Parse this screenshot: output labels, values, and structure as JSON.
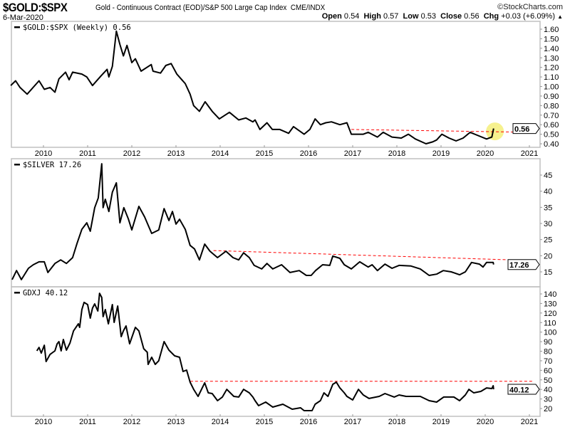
{
  "header": {
    "symbol": "$GOLD:$SPX",
    "description": "Gold - Continuous Contract (EOD)/S&P 500 Large Cap Index",
    "exchange": "CME/INDX",
    "brand": "©StockCharts.com",
    "date": "6-Mar-2020",
    "open_label": "Open",
    "open": "0.54",
    "high_label": "High",
    "high": "0.57",
    "low_label": "Low",
    "low": "0.53",
    "close_label": "Close",
    "close": "0.56",
    "chg_label": "Chg",
    "chg": "+0.03 (+6.09%)",
    "up_arrow_icon": "triangle-up"
  },
  "colors": {
    "line": "#000000",
    "trend": "#ff0000",
    "highlight": "#f5ef7a",
    "grid": "#c0c0c0"
  },
  "chart_data": [
    {
      "type": "line",
      "legend": "$GOLD:$SPX (Weekly) 0.56",
      "last_value_label": "0.56",
      "ylim": [
        0.35,
        1.68
      ],
      "yticks": [
        "1.60",
        "1.50",
        "1.40",
        "1.30",
        "1.20",
        "1.10",
        "1.00",
        "0.90",
        "0.80",
        "0.70",
        "0.60",
        "0.50",
        "0.40"
      ],
      "xticks": [
        "2010",
        "2011",
        "2012",
        "2013",
        "2014",
        "2015",
        "2016",
        "2017",
        "2018",
        "2019",
        "2020",
        "2021"
      ],
      "trendline": [
        [
          2016.97,
          0.55
        ],
        [
          2021.07,
          0.52
        ]
      ],
      "highlight_circle": [
        2020.22,
        0.53
      ],
      "points": [
        [
          2009.26,
          1.01
        ],
        [
          2009.37,
          1.06
        ],
        [
          2009.47,
          0.99
        ],
        [
          2009.63,
          0.92
        ],
        [
          2009.9,
          1.06
        ],
        [
          2010.02,
          0.97
        ],
        [
          2010.15,
          0.99
        ],
        [
          2010.26,
          0.94
        ],
        [
          2010.35,
          1.08
        ],
        [
          2010.5,
          1.15
        ],
        [
          2010.58,
          1.07
        ],
        [
          2010.66,
          1.15
        ],
        [
          2010.87,
          1.13
        ],
        [
          2010.98,
          1.1
        ],
        [
          2011.11,
          1.01
        ],
        [
          2011.3,
          1.11
        ],
        [
          2011.44,
          1.18
        ],
        [
          2011.48,
          1.1
        ],
        [
          2011.56,
          1.21
        ],
        [
          2011.65,
          1.58
        ],
        [
          2011.73,
          1.44
        ],
        [
          2011.81,
          1.32
        ],
        [
          2011.89,
          1.43
        ],
        [
          2012.0,
          1.25
        ],
        [
          2012.08,
          1.29
        ],
        [
          2012.21,
          1.16
        ],
        [
          2012.44,
          1.23
        ],
        [
          2012.48,
          1.16
        ],
        [
          2012.65,
          1.14
        ],
        [
          2012.77,
          1.22
        ],
        [
          2012.89,
          1.24
        ],
        [
          2013.02,
          1.13
        ],
        [
          2013.21,
          1.03
        ],
        [
          2013.32,
          0.92
        ],
        [
          2013.4,
          0.8
        ],
        [
          2013.53,
          0.74
        ],
        [
          2013.66,
          0.84
        ],
        [
          2013.82,
          0.74
        ],
        [
          2013.98,
          0.66
        ],
        [
          2014.21,
          0.73
        ],
        [
          2014.42,
          0.65
        ],
        [
          2014.58,
          0.67
        ],
        [
          2014.74,
          0.63
        ],
        [
          2014.79,
          0.65
        ],
        [
          2014.9,
          0.55
        ],
        [
          2015.06,
          0.62
        ],
        [
          2015.18,
          0.55
        ],
        [
          2015.35,
          0.55
        ],
        [
          2015.55,
          0.51
        ],
        [
          2015.66,
          0.58
        ],
        [
          2015.9,
          0.5
        ],
        [
          2016.03,
          0.55
        ],
        [
          2016.15,
          0.66
        ],
        [
          2016.27,
          0.6
        ],
        [
          2016.39,
          0.62
        ],
        [
          2016.52,
          0.63
        ],
        [
          2016.71,
          0.6
        ],
        [
          2016.87,
          0.62
        ],
        [
          2016.97,
          0.5
        ],
        [
          2017.24,
          0.5
        ],
        [
          2017.35,
          0.52
        ],
        [
          2017.56,
          0.47
        ],
        [
          2017.69,
          0.52
        ],
        [
          2017.89,
          0.47
        ],
        [
          2018.1,
          0.46
        ],
        [
          2018.26,
          0.5
        ],
        [
          2018.42,
          0.45
        ],
        [
          2018.66,
          0.4
        ],
        [
          2018.81,
          0.42
        ],
        [
          2018.9,
          0.44
        ],
        [
          2019.02,
          0.5
        ],
        [
          2019.18,
          0.46
        ],
        [
          2019.34,
          0.43
        ],
        [
          2019.5,
          0.46
        ],
        [
          2019.66,
          0.52
        ],
        [
          2019.82,
          0.49
        ],
        [
          2020.03,
          0.45
        ],
        [
          2020.15,
          0.47
        ],
        [
          2020.19,
          0.56
        ]
      ]
    },
    {
      "type": "line",
      "legend": "$SILVER 17.26",
      "last_value_label": "17.26",
      "ylim": [
        11,
        49
      ],
      "yticks": [
        "45",
        "40",
        "35",
        "30",
        "25",
        "20",
        "15"
      ],
      "trendline": [
        [
          2013.85,
          21.6
        ],
        [
          2021.07,
          18.5
        ]
      ],
      "points": [
        [
          2009.29,
          12.6
        ],
        [
          2009.39,
          15.4
        ],
        [
          2009.5,
          12.6
        ],
        [
          2009.66,
          16.1
        ],
        [
          2009.77,
          17.2
        ],
        [
          2009.9,
          18.1
        ],
        [
          2010.02,
          18.1
        ],
        [
          2010.1,
          14.8
        ],
        [
          2010.26,
          17.6
        ],
        [
          2010.39,
          18.7
        ],
        [
          2010.52,
          17.6
        ],
        [
          2010.66,
          19.4
        ],
        [
          2010.76,
          23.8
        ],
        [
          2010.87,
          28.2
        ],
        [
          2010.98,
          30.2
        ],
        [
          2011.06,
          27.6
        ],
        [
          2011.16,
          34.9
        ],
        [
          2011.24,
          37.9
        ],
        [
          2011.32,
          48.5
        ],
        [
          2011.35,
          34.9
        ],
        [
          2011.4,
          37.5
        ],
        [
          2011.48,
          33.7
        ],
        [
          2011.56,
          39.7
        ],
        [
          2011.65,
          42.6
        ],
        [
          2011.73,
          30.2
        ],
        [
          2011.82,
          34.9
        ],
        [
          2011.92,
          31.5
        ],
        [
          2012.0,
          28.0
        ],
        [
          2012.16,
          35.3
        ],
        [
          2012.29,
          32.0
        ],
        [
          2012.45,
          26.9
        ],
        [
          2012.61,
          28.0
        ],
        [
          2012.73,
          34.6
        ],
        [
          2012.84,
          30.9
        ],
        [
          2012.92,
          33.7
        ],
        [
          2013.0,
          29.8
        ],
        [
          2013.08,
          31.3
        ],
        [
          2013.21,
          28.2
        ],
        [
          2013.32,
          23.2
        ],
        [
          2013.42,
          22.1
        ],
        [
          2013.53,
          18.7
        ],
        [
          2013.65,
          23.6
        ],
        [
          2013.77,
          21.4
        ],
        [
          2013.94,
          19.4
        ],
        [
          2014.13,
          21.4
        ],
        [
          2014.29,
          19.4
        ],
        [
          2014.42,
          18.7
        ],
        [
          2014.53,
          20.9
        ],
        [
          2014.66,
          19.4
        ],
        [
          2014.77,
          17.0
        ],
        [
          2014.94,
          15.9
        ],
        [
          2015.06,
          17.6
        ],
        [
          2015.19,
          15.9
        ],
        [
          2015.39,
          17.2
        ],
        [
          2015.58,
          14.8
        ],
        [
          2015.79,
          15.4
        ],
        [
          2015.95,
          13.9
        ],
        [
          2016.06,
          13.9
        ],
        [
          2016.16,
          15.4
        ],
        [
          2016.32,
          17.2
        ],
        [
          2016.48,
          17.0
        ],
        [
          2016.55,
          19.9
        ],
        [
          2016.71,
          19.2
        ],
        [
          2016.81,
          17.2
        ],
        [
          2016.97,
          15.9
        ],
        [
          2017.16,
          18.1
        ],
        [
          2017.35,
          16.5
        ],
        [
          2017.44,
          17.2
        ],
        [
          2017.56,
          15.4
        ],
        [
          2017.73,
          17.4
        ],
        [
          2017.89,
          16.1
        ],
        [
          2018.05,
          17.0
        ],
        [
          2018.32,
          16.8
        ],
        [
          2018.53,
          15.9
        ],
        [
          2018.73,
          13.9
        ],
        [
          2018.9,
          14.3
        ],
        [
          2019.05,
          15.4
        ],
        [
          2019.23,
          15.0
        ],
        [
          2019.42,
          14.1
        ],
        [
          2019.55,
          15.0
        ],
        [
          2019.69,
          17.9
        ],
        [
          2019.87,
          17.4
        ],
        [
          2019.95,
          16.5
        ],
        [
          2020.03,
          17.9
        ],
        [
          2020.18,
          17.9
        ],
        [
          2020.19,
          17.26
        ]
      ]
    },
    {
      "type": "line",
      "legend": "GDXJ 40.12",
      "last_value_label": "40.12",
      "ylim": [
        10,
        147
      ],
      "yticks": [
        "140",
        "130",
        "120",
        "110",
        "100",
        "90",
        "80",
        "70",
        "60",
        "50",
        "40",
        "30",
        "20"
      ],
      "xticks": [
        "2010",
        "2011",
        "2012",
        "2013",
        "2014",
        "2015",
        "2016",
        "2017",
        "2018",
        "2019",
        "2020",
        "2021"
      ],
      "trendline": [
        [
          2013.32,
          48.5
        ],
        [
          2021.07,
          48.5
        ]
      ],
      "points": [
        [
          2009.85,
          80.4
        ],
        [
          2009.9,
          84
        ],
        [
          2009.95,
          78
        ],
        [
          2010.02,
          86.3
        ],
        [
          2010.06,
          69.2
        ],
        [
          2010.15,
          76.7
        ],
        [
          2010.26,
          80.4
        ],
        [
          2010.31,
          87.8
        ],
        [
          2010.35,
          90.1
        ],
        [
          2010.4,
          80.4
        ],
        [
          2010.45,
          92.3
        ],
        [
          2010.52,
          81.1
        ],
        [
          2010.6,
          88.6
        ],
        [
          2010.68,
          101.3
        ],
        [
          2010.79,
          108.7
        ],
        [
          2010.82,
          105
        ],
        [
          2010.87,
          123.6
        ],
        [
          2010.92,
          131.1
        ],
        [
          2011.0,
          128.8
        ],
        [
          2011.06,
          114.7
        ],
        [
          2011.11,
          125.1
        ],
        [
          2011.16,
          129.6
        ],
        [
          2011.23,
          122.1
        ],
        [
          2011.27,
          140.7
        ],
        [
          2011.32,
          136.3
        ],
        [
          2011.35,
          116.2
        ],
        [
          2011.4,
          123.6
        ],
        [
          2011.47,
          108.7
        ],
        [
          2011.56,
          128.8
        ],
        [
          2011.6,
          110.2
        ],
        [
          2011.68,
          127.3
        ],
        [
          2011.76,
          95.3
        ],
        [
          2011.81,
          101.3
        ],
        [
          2011.87,
          106.5
        ],
        [
          2011.95,
          87.8
        ],
        [
          2012.08,
          105
        ],
        [
          2012.16,
          101.3
        ],
        [
          2012.27,
          82.6
        ],
        [
          2012.35,
          78.9
        ],
        [
          2012.37,
          66.2
        ],
        [
          2012.45,
          73.7
        ],
        [
          2012.53,
          66.2
        ],
        [
          2012.61,
          70
        ],
        [
          2012.73,
          90.1
        ],
        [
          2012.84,
          81.1
        ],
        [
          2012.97,
          75.2
        ],
        [
          2013.08,
          73.7
        ],
        [
          2013.16,
          58.8
        ],
        [
          2013.24,
          60.3
        ],
        [
          2013.32,
          47.6
        ],
        [
          2013.4,
          40.1
        ],
        [
          2013.5,
          32.7
        ],
        [
          2013.65,
          46.9
        ],
        [
          2013.73,
          36.4
        ],
        [
          2013.82,
          35.7
        ],
        [
          2013.94,
          28.2
        ],
        [
          2014.05,
          32
        ],
        [
          2014.15,
          40.1
        ],
        [
          2014.31,
          32.7
        ],
        [
          2014.42,
          32
        ],
        [
          2014.53,
          40.1
        ],
        [
          2014.66,
          36.4
        ],
        [
          2014.74,
          32
        ],
        [
          2014.79,
          28.2
        ],
        [
          2014.87,
          23
        ],
        [
          2015.03,
          26.7
        ],
        [
          2015.19,
          21.5
        ],
        [
          2015.42,
          24.5
        ],
        [
          2015.63,
          19.3
        ],
        [
          2015.82,
          20.8
        ],
        [
          2015.9,
          17.8
        ],
        [
          2016.08,
          17.8
        ],
        [
          2016.15,
          24.5
        ],
        [
          2016.27,
          28.2
        ],
        [
          2016.35,
          36.4
        ],
        [
          2016.44,
          32.7
        ],
        [
          2016.55,
          45.4
        ],
        [
          2016.63,
          47.6
        ],
        [
          2016.71,
          41.6
        ],
        [
          2016.81,
          36.4
        ],
        [
          2016.87,
          32.7
        ],
        [
          2017.0,
          29
        ],
        [
          2017.13,
          40.1
        ],
        [
          2017.24,
          34.2
        ],
        [
          2017.37,
          30.5
        ],
        [
          2017.6,
          32.7
        ],
        [
          2017.73,
          35.7
        ],
        [
          2017.94,
          32
        ],
        [
          2018.05,
          34.2
        ],
        [
          2018.21,
          32.7
        ],
        [
          2018.53,
          32.7
        ],
        [
          2018.73,
          28.2
        ],
        [
          2018.9,
          26.7
        ],
        [
          2019.06,
          32
        ],
        [
          2019.29,
          32
        ],
        [
          2019.42,
          28.2
        ],
        [
          2019.55,
          34.2
        ],
        [
          2019.63,
          40.1
        ],
        [
          2019.74,
          36.4
        ],
        [
          2019.9,
          37.9
        ],
        [
          2020.03,
          41.6
        ],
        [
          2020.15,
          40.9
        ],
        [
          2020.18,
          43.9
        ],
        [
          2020.19,
          40.12
        ]
      ]
    }
  ]
}
